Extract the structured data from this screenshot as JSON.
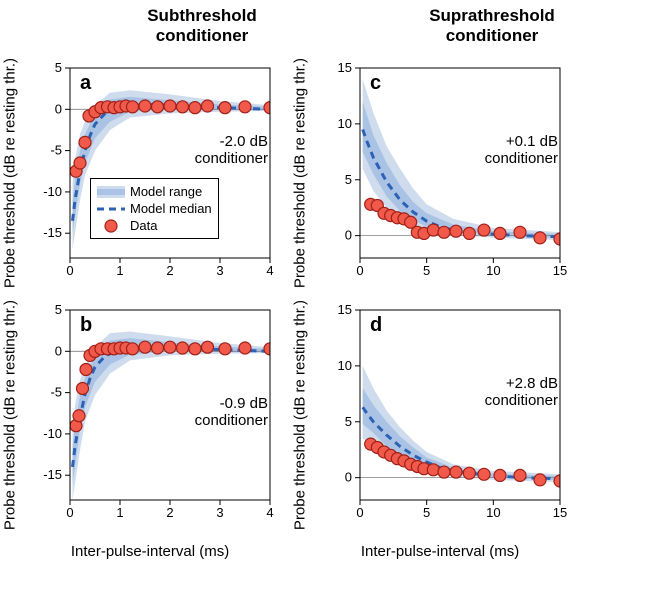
{
  "layout": {
    "col_left_title": "Subthreshold\nconditioner",
    "col_right_title": "Suprathreshold\nconditioner",
    "title_fontsize": 17,
    "label_fontsize": 15,
    "tick_fontsize": 13,
    "panel_letter_fontsize": 20,
    "background_color": "#ffffff"
  },
  "colors": {
    "data_marker_fill": "#f15a4a",
    "data_marker_edge": "#a02018",
    "median_line": "#2b62b4",
    "range_fill_outer": "#cfdcee",
    "range_fill_inner": "#aac3e4",
    "axis": "#000000",
    "zero_line": "#808080"
  },
  "style": {
    "median_dash": "7,5",
    "median_width": 3,
    "marker_radius": 6,
    "marker_stroke_width": 1.2
  },
  "legend": {
    "items": [
      {
        "label": "Model range",
        "type": "band"
      },
      {
        "label": "Model median",
        "type": "dash"
      },
      {
        "label": "Data",
        "type": "marker"
      }
    ]
  },
  "axes": {
    "y_label": "Probe threshold (dB re resting thr.)",
    "x_label": "Inter-pulse-interval (ms)",
    "left": {
      "xlim": [
        0,
        4
      ],
      "xticks": [
        0,
        1,
        2,
        3,
        4
      ],
      "ylim": [
        -18,
        5
      ],
      "yticks": [
        -15,
        -10,
        -5,
        0,
        5
      ]
    },
    "right": {
      "xlim": [
        0,
        15
      ],
      "xticks": [
        0,
        5,
        10,
        15
      ],
      "ylim": [
        -2,
        15
      ],
      "yticks": [
        0,
        5,
        10,
        15
      ]
    }
  },
  "panels": {
    "a": {
      "letter": "a",
      "cond_label": "-2.0 dB\nconditioner",
      "side": "left",
      "median": [
        [
          0.05,
          -13.5
        ],
        [
          0.1,
          -11
        ],
        [
          0.2,
          -7.5
        ],
        [
          0.3,
          -5
        ],
        [
          0.4,
          -3.2
        ],
        [
          0.5,
          -1.8
        ],
        [
          0.7,
          -0.5
        ],
        [
          1.0,
          0.3
        ],
        [
          1.5,
          0.6
        ],
        [
          2.0,
          0.5
        ],
        [
          3.0,
          0.2
        ],
        [
          4.0,
          0.0
        ]
      ],
      "band_outer": [
        [
          0.05,
          -17,
          -9
        ],
        [
          0.1,
          -15,
          -6
        ],
        [
          0.2,
          -11,
          -3
        ],
        [
          0.3,
          -8,
          -1.5
        ],
        [
          0.5,
          -5,
          0.5
        ],
        [
          0.8,
          -2.5,
          2.0
        ],
        [
          1.2,
          -1,
          2.3
        ],
        [
          2.0,
          -0.5,
          1.8
        ],
        [
          3.0,
          -0.3,
          1.0
        ],
        [
          4.0,
          -0.2,
          0.5
        ]
      ],
      "band_inner": [
        [
          0.05,
          -15,
          -11
        ],
        [
          0.1,
          -13,
          -8.5
        ],
        [
          0.2,
          -9,
          -5
        ],
        [
          0.3,
          -6.5,
          -3
        ],
        [
          0.5,
          -3.5,
          -0.5
        ],
        [
          0.8,
          -1.5,
          1.2
        ],
        [
          1.2,
          -0.3,
          1.5
        ],
        [
          2.0,
          0,
          1.1
        ],
        [
          3.0,
          -0.1,
          0.6
        ],
        [
          4.0,
          -0.1,
          0.3
        ]
      ],
      "data": [
        [
          0.12,
          -7.5
        ],
        [
          0.2,
          -6.5
        ],
        [
          0.3,
          -4
        ],
        [
          0.38,
          -0.8
        ],
        [
          0.5,
          -0.3
        ],
        [
          0.62,
          0.2
        ],
        [
          0.75,
          0.3
        ],
        [
          0.88,
          0.2
        ],
        [
          1.0,
          0.3
        ],
        [
          1.12,
          0.4
        ],
        [
          1.25,
          0.3
        ],
        [
          1.5,
          0.4
        ],
        [
          1.75,
          0.3
        ],
        [
          2.0,
          0.4
        ],
        [
          2.25,
          0.3
        ],
        [
          2.5,
          0.2
        ],
        [
          2.75,
          0.4
        ],
        [
          3.1,
          0.2
        ],
        [
          3.5,
          0.3
        ],
        [
          4.0,
          0.2
        ]
      ]
    },
    "b": {
      "letter": "b",
      "cond_label": "-0.9 dB\nconditioner",
      "side": "left",
      "median": [
        [
          0.05,
          -14
        ],
        [
          0.1,
          -11.5
        ],
        [
          0.2,
          -8
        ],
        [
          0.3,
          -5.2
        ],
        [
          0.4,
          -3.3
        ],
        [
          0.5,
          -1.9
        ],
        [
          0.7,
          -0.6
        ],
        [
          1.0,
          0.3
        ],
        [
          1.5,
          0.6
        ],
        [
          2.0,
          0.5
        ],
        [
          3.0,
          0.2
        ],
        [
          4.0,
          0.0
        ]
      ],
      "band_outer": [
        [
          0.05,
          -18,
          -9.5
        ],
        [
          0.1,
          -16,
          -6.5
        ],
        [
          0.2,
          -12,
          -3.5
        ],
        [
          0.3,
          -8.5,
          -1.7
        ],
        [
          0.5,
          -5.3,
          0.5
        ],
        [
          0.8,
          -2.7,
          2.2
        ],
        [
          1.2,
          -1.1,
          2.4
        ],
        [
          2.0,
          -0.5,
          1.8
        ],
        [
          3.0,
          -0.3,
          1.0
        ],
        [
          4.0,
          -0.2,
          0.5
        ]
      ],
      "band_inner": [
        [
          0.05,
          -16,
          -11.5
        ],
        [
          0.1,
          -14,
          -9
        ],
        [
          0.2,
          -9.5,
          -5.3
        ],
        [
          0.3,
          -6.8,
          -3.2
        ],
        [
          0.5,
          -3.7,
          -0.6
        ],
        [
          0.8,
          -1.6,
          1.3
        ],
        [
          1.2,
          -0.4,
          1.6
        ],
        [
          2.0,
          0,
          1.1
        ],
        [
          3.0,
          -0.1,
          0.6
        ],
        [
          4.0,
          -0.1,
          0.3
        ]
      ],
      "data": [
        [
          0.12,
          -9
        ],
        [
          0.18,
          -7.8
        ],
        [
          0.25,
          -4.5
        ],
        [
          0.32,
          -2.2
        ],
        [
          0.4,
          -0.5
        ],
        [
          0.5,
          0.0
        ],
        [
          0.62,
          0.3
        ],
        [
          0.75,
          0.3
        ],
        [
          0.88,
          0.3
        ],
        [
          1.0,
          0.4
        ],
        [
          1.12,
          0.4
        ],
        [
          1.25,
          0.3
        ],
        [
          1.5,
          0.5
        ],
        [
          1.75,
          0.4
        ],
        [
          2.0,
          0.5
        ],
        [
          2.25,
          0.4
        ],
        [
          2.5,
          0.3
        ],
        [
          2.75,
          0.5
        ],
        [
          3.1,
          0.3
        ],
        [
          3.5,
          0.4
        ],
        [
          4.0,
          0.3
        ]
      ]
    },
    "c": {
      "letter": "c",
      "cond_label": "+0.1 dB\nconditioner",
      "side": "right",
      "median": [
        [
          0.2,
          9.5
        ],
        [
          0.5,
          8.5
        ],
        [
          1,
          7
        ],
        [
          2,
          4.8
        ],
        [
          3,
          3.2
        ],
        [
          4,
          2.1
        ],
        [
          5,
          1.3
        ],
        [
          6,
          0.8
        ],
        [
          7,
          0.5
        ],
        [
          9,
          0.2
        ],
        [
          12,
          0.0
        ],
        [
          15,
          -0.1
        ]
      ],
      "band_outer": [
        [
          0.2,
          6,
          14
        ],
        [
          1,
          4,
          11
        ],
        [
          2,
          2.5,
          8
        ],
        [
          3,
          1.5,
          6
        ],
        [
          4,
          0.8,
          4.2
        ],
        [
          5,
          0.4,
          2.8
        ],
        [
          7,
          0.1,
          1.5
        ],
        [
          10,
          -0.2,
          0.7
        ],
        [
          15,
          -0.4,
          0.3
        ]
      ],
      "band_inner": [
        [
          0.2,
          7.5,
          12
        ],
        [
          1,
          5.5,
          9
        ],
        [
          2,
          3.5,
          6.5
        ],
        [
          3,
          2.2,
          4.5
        ],
        [
          4,
          1.4,
          3
        ],
        [
          5,
          0.8,
          2
        ],
        [
          7,
          0.3,
          1
        ],
        [
          10,
          0,
          0.4
        ],
        [
          15,
          -0.2,
          0.15
        ]
      ],
      "data": [
        [
          0.8,
          2.8
        ],
        [
          1.3,
          2.7
        ],
        [
          1.8,
          2.0
        ],
        [
          2.3,
          1.8
        ],
        [
          2.8,
          1.6
        ],
        [
          3.3,
          1.5
        ],
        [
          3.8,
          1.2
        ],
        [
          4.3,
          0.3
        ],
        [
          4.8,
          0.2
        ],
        [
          5.5,
          0.5
        ],
        [
          6.3,
          0.3
        ],
        [
          7.2,
          0.4
        ],
        [
          8.2,
          0.2
        ],
        [
          9.3,
          0.5
        ],
        [
          10.5,
          0.2
        ],
        [
          12,
          0.3
        ],
        [
          13.5,
          -0.2
        ],
        [
          15,
          -0.3
        ]
      ]
    },
    "d": {
      "letter": "d",
      "cond_label": "+2.8 dB\nconditioner",
      "side": "right",
      "median": [
        [
          0.2,
          6.3
        ],
        [
          0.5,
          5.8
        ],
        [
          1,
          5.0
        ],
        [
          2,
          3.8
        ],
        [
          3,
          2.8
        ],
        [
          4,
          2.0
        ],
        [
          5,
          1.4
        ],
        [
          6,
          0.9
        ],
        [
          7,
          0.6
        ],
        [
          9,
          0.3
        ],
        [
          12,
          0.0
        ],
        [
          15,
          -0.1
        ]
      ],
      "band_outer": [
        [
          0.2,
          3.5,
          10
        ],
        [
          1,
          2.8,
          8
        ],
        [
          2,
          1.8,
          6
        ],
        [
          3,
          1.2,
          4.5
        ],
        [
          4,
          0.7,
          3.3
        ],
        [
          5,
          0.4,
          2.3
        ],
        [
          7,
          0.1,
          1.2
        ],
        [
          10,
          -0.2,
          0.6
        ],
        [
          15,
          -0.4,
          0.3
        ]
      ],
      "band_inner": [
        [
          0.2,
          4.8,
          8
        ],
        [
          1,
          4,
          6.5
        ],
        [
          2,
          2.8,
          5
        ],
        [
          3,
          2,
          3.7
        ],
        [
          4,
          1.3,
          2.7
        ],
        [
          5,
          0.8,
          1.8
        ],
        [
          7,
          0.3,
          0.9
        ],
        [
          10,
          0,
          0.35
        ],
        [
          15,
          -0.2,
          0.15
        ]
      ],
      "data": [
        [
          0.8,
          3.0
        ],
        [
          1.3,
          2.7
        ],
        [
          1.8,
          2.3
        ],
        [
          2.3,
          2.0
        ],
        [
          2.8,
          1.7
        ],
        [
          3.3,
          1.5
        ],
        [
          3.8,
          1.2
        ],
        [
          4.3,
          1.0
        ],
        [
          4.8,
          0.8
        ],
        [
          5.5,
          0.7
        ],
        [
          6.3,
          0.5
        ],
        [
          7.2,
          0.5
        ],
        [
          8.2,
          0.4
        ],
        [
          9.3,
          0.3
        ],
        [
          10.5,
          0.2
        ],
        [
          12,
          0.2
        ],
        [
          13.5,
          -0.2
        ],
        [
          15,
          -0.3
        ]
      ]
    }
  }
}
